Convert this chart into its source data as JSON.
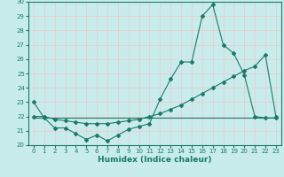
{
  "title": "",
  "xlabel": "Humidex (Indice chaleur)",
  "bg_color": "#c8ecec",
  "grid_color": "#f0c8c8",
  "line_color": "#1a7a6a",
  "xlim": [
    -0.5,
    23.5
  ],
  "ylim": [
    20,
    30
  ],
  "yticks": [
    20,
    21,
    22,
    23,
    24,
    25,
    26,
    27,
    28,
    29,
    30
  ],
  "xticks": [
    0,
    1,
    2,
    3,
    4,
    5,
    6,
    7,
    8,
    9,
    10,
    11,
    12,
    13,
    14,
    15,
    16,
    17,
    18,
    19,
    20,
    21,
    22,
    23
  ],
  "series1_x": [
    0,
    1,
    2,
    3,
    4,
    5,
    6,
    7,
    8,
    9,
    10,
    11,
    12,
    13,
    14,
    15,
    16,
    17,
    18,
    19,
    20,
    21,
    22,
    23
  ],
  "series1_y": [
    23.0,
    21.9,
    21.2,
    21.2,
    20.8,
    20.4,
    20.7,
    20.3,
    20.7,
    21.1,
    21.3,
    21.5,
    23.2,
    24.6,
    25.8,
    25.8,
    29.0,
    29.8,
    27.0,
    26.4,
    24.9,
    22.0,
    21.9,
    21.9
  ],
  "series2_x": [
    0,
    1,
    2,
    3,
    4,
    5,
    6,
    7,
    8,
    9,
    10,
    11,
    12,
    13,
    14,
    15,
    16,
    17,
    18,
    19,
    20,
    21,
    22,
    23
  ],
  "series2_y": [
    22.0,
    22.0,
    21.8,
    21.7,
    21.6,
    21.5,
    21.5,
    21.5,
    21.6,
    21.7,
    21.8,
    22.0,
    22.2,
    22.5,
    22.8,
    23.2,
    23.6,
    24.0,
    24.4,
    24.8,
    25.2,
    25.5,
    26.3,
    22.0
  ],
  "series3_x": [
    0,
    23
  ],
  "series3_y": [
    21.9,
    21.9
  ]
}
